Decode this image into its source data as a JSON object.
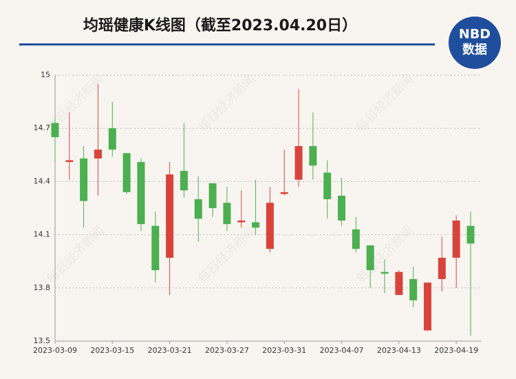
{
  "chart_data": {
    "type": "candlestick",
    "title": "均瑶健康K线图（截至2023.04.20日）",
    "logo": {
      "top": "NBD",
      "bottom": "数据"
    },
    "watermark": "每日经济新闻",
    "categories": [
      "2023-03-09",
      null,
      null,
      null,
      "2023-03-15",
      null,
      null,
      null,
      "2023-03-21",
      null,
      null,
      null,
      "2023-03-27",
      null,
      null,
      null,
      "2023-03-31",
      null,
      null,
      null,
      "2023-04-07",
      null,
      null,
      null,
      "2023-04-13",
      null,
      null,
      null,
      "2023-04-19",
      null
    ],
    "open": [
      14.73,
      14.51,
      14.53,
      14.53,
      14.7,
      14.56,
      14.51,
      14.15,
      13.97,
      14.46,
      14.3,
      14.39,
      14.28,
      14.17,
      14.17,
      14.02,
      14.33,
      14.41,
      14.6,
      14.45,
      14.32,
      14.13,
      14.04,
      13.89,
      13.76,
      13.85,
      13.56,
      13.85,
      13.97,
      14.15
    ],
    "high": [
      14.76,
      14.79,
      14.6,
      14.95,
      14.85,
      14.56,
      14.53,
      14.23,
      14.51,
      14.73,
      14.43,
      14.39,
      14.37,
      14.35,
      14.41,
      14.37,
      14.58,
      14.92,
      14.79,
      14.52,
      14.42,
      14.2,
      14.04,
      13.96,
      13.9,
      13.92,
      13.83,
      14.09,
      14.21,
      14.23
    ],
    "low": [
      14.51,
      14.41,
      14.14,
      14.32,
      14.54,
      14.33,
      14.12,
      13.83,
      13.76,
      14.31,
      14.06,
      14.2,
      14.12,
      14.14,
      14.1,
      14.0,
      14.32,
      14.37,
      14.41,
      14.19,
      14.15,
      14.0,
      13.8,
      13.77,
      13.76,
      13.69,
      13.56,
      13.78,
      13.8,
      13.53
    ],
    "close": [
      14.65,
      14.52,
      14.29,
      14.58,
      14.58,
      14.34,
      14.16,
      13.9,
      14.44,
      14.35,
      14.19,
      14.25,
      14.16,
      14.18,
      14.14,
      14.28,
      14.34,
      14.6,
      14.49,
      14.3,
      14.18,
      14.02,
      13.9,
      13.88,
      13.89,
      13.73,
      13.83,
      13.97,
      14.18,
      14.05
    ],
    "up_color": "#d9433b",
    "down_color": "#4caf50",
    "ylim": [
      13.5,
      15
    ],
    "yticks": [
      13.5,
      13.8,
      14.1,
      14.4,
      14.7,
      15
    ],
    "grid": true
  }
}
